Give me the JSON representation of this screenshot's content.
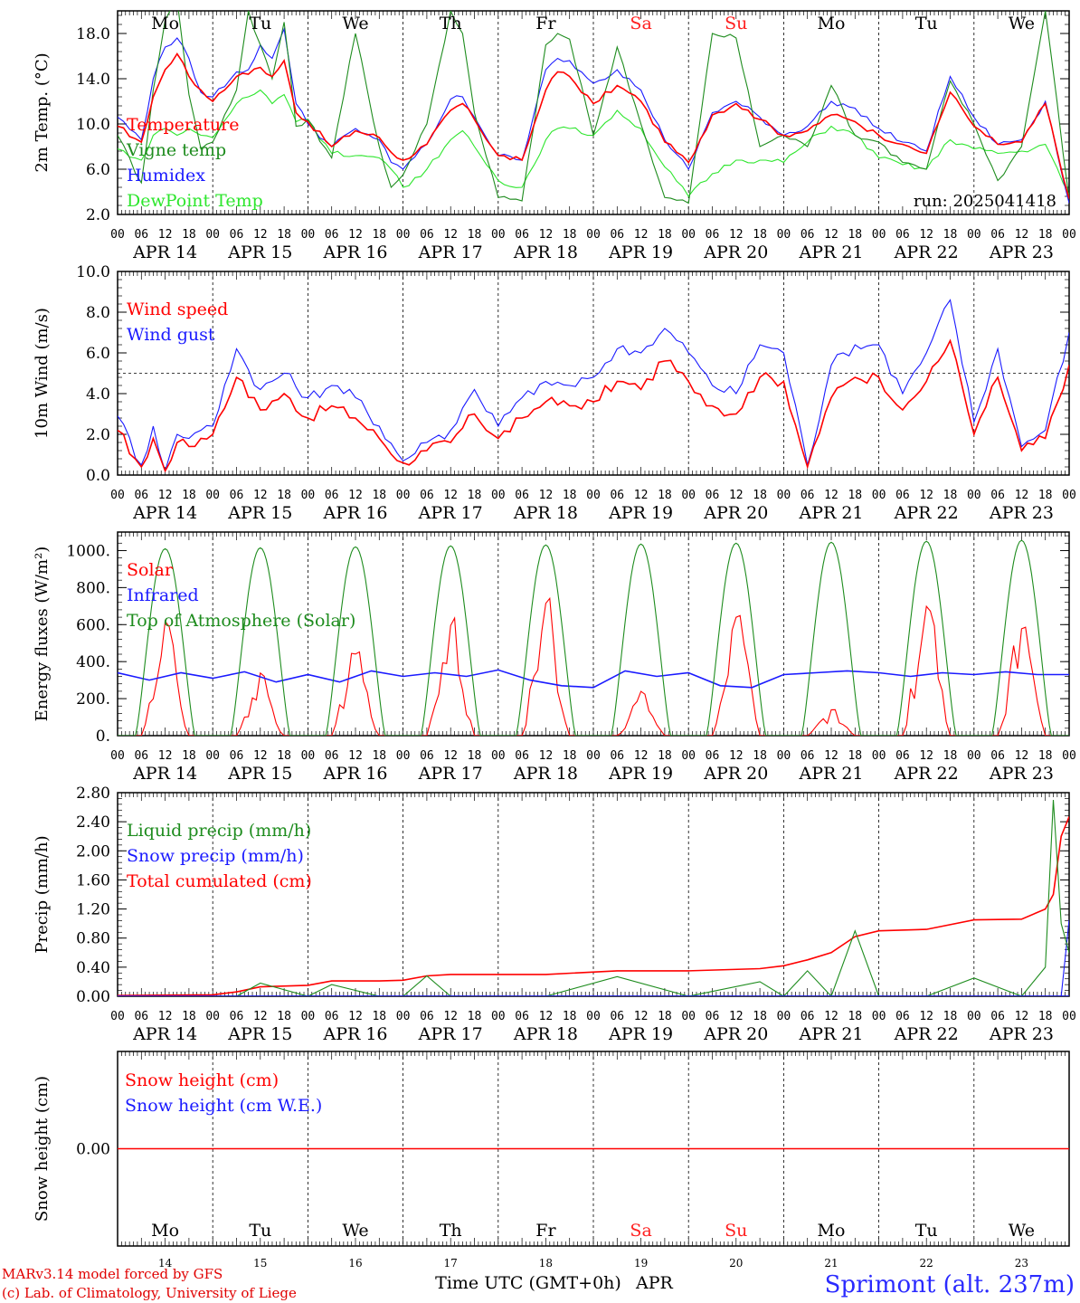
{
  "days": [
    "APR 14",
    "APR 15",
    "APR 16",
    "APR 17",
    "APR 18",
    "APR 19",
    "APR 20",
    "APR 21",
    "APR 22",
    "APR 23"
  ],
  "day_nums": [
    "14",
    "15",
    "16",
    "17",
    "18",
    "19",
    "20",
    "21",
    "22",
    "23"
  ],
  "weekdays": [
    "Mo",
    "Tu",
    "We",
    "Th",
    "Fr",
    "Sa",
    "Su",
    "Mo",
    "Tu",
    "We"
  ],
  "weekend_color": "#ff2020",
  "hour_ticks": [
    "00",
    "06",
    "12",
    "18"
  ],
  "end_tick": "00",
  "x_title": "Time UTC (GMT+0h)",
  "x_month": "APR",
  "credit_line1": "MARv3.14 model forced by GFS",
  "credit_line2": "(c) Lab. of Climatology, University of Liege",
  "station": "Sprimont (alt. 237m)",
  "colors": {
    "red": "#ff0000",
    "green": "#1e8c1e",
    "blue": "#1a1aff",
    "lightgreen": "#2de62d"
  },
  "chart_data": [
    {
      "type": "line",
      "ylabel": "2m Temp. (°C)",
      "ylim": [
        2,
        20
      ],
      "yticks": [
        "2.0",
        "6.0",
        "10.0",
        "14.0",
        "18.0"
      ],
      "run_label": "run: 2025041418",
      "x_hours": [
        0,
        6,
        9,
        12,
        15,
        18,
        21,
        24,
        30,
        33,
        36,
        39,
        42,
        45,
        48,
        54,
        60,
        66,
        69,
        72,
        78,
        84,
        87,
        90,
        96,
        102,
        108,
        111,
        114,
        120,
        126,
        132,
        138,
        144,
        150,
        156,
        162,
        168,
        174,
        180,
        186,
        192,
        198,
        204,
        210,
        216,
        222,
        228,
        234,
        240
      ],
      "series": [
        {
          "name": "Temperature",
          "color": "red",
          "values": [
            9.8,
            8.4,
            12.4,
            14.8,
            16.2,
            14.2,
            13.0,
            12.0,
            14.2,
            14.4,
            15.0,
            14.2,
            15.6,
            11.0,
            10.2,
            8.0,
            9.4,
            8.8,
            7.5,
            6.8,
            8.2,
            11.2,
            11.8,
            10.4,
            7.2,
            6.8,
            13.0,
            14.6,
            14.2,
            11.8,
            13.4,
            12.0,
            8.4,
            6.6,
            10.8,
            11.8,
            10.4,
            9.0,
            9.4,
            10.8,
            10.2,
            9.0,
            8.2,
            7.4,
            12.8,
            9.8,
            8.2,
            8.4,
            11.8,
            3.4
          ]
        },
        {
          "name": "Vigne temp",
          "color": "green",
          "values": [
            9.0,
            4.8,
            13.0,
            19.2,
            21.0,
            12.6,
            7.8,
            8.4,
            13.0,
            20.0,
            17.0,
            14.0,
            19.0,
            9.8,
            10.4,
            7.0,
            18.0,
            8.0,
            4.4,
            5.5,
            10.0,
            20.0,
            18.0,
            11.0,
            3.5,
            3.2,
            17.0,
            18.0,
            17.5,
            9.0,
            16.8,
            10.0,
            3.5,
            3.0,
            18.0,
            17.6,
            8.0,
            9.0,
            8.0,
            13.4,
            9.0,
            8.4,
            6.6,
            6.0,
            13.8,
            10.0,
            5.0,
            8.0,
            20.0,
            3.4
          ]
        },
        {
          "name": "Humidex",
          "color": "blue",
          "values": [
            10.6,
            8.6,
            14.0,
            16.8,
            17.6,
            15.8,
            12.8,
            12.4,
            14.6,
            14.8,
            17.0,
            15.8,
            18.4,
            11.8,
            10.0,
            8.0,
            9.6,
            8.6,
            6.6,
            6.0,
            8.2,
            12.2,
            12.4,
            10.6,
            7.2,
            6.8,
            14.8,
            15.8,
            15.6,
            13.6,
            14.8,
            13.0,
            8.6,
            6.0,
            11.0,
            12.0,
            10.6,
            9.0,
            9.8,
            12.0,
            11.4,
            9.6,
            8.4,
            7.6,
            14.2,
            10.6,
            8.2,
            8.6,
            12.0,
            3.0
          ]
        },
        {
          "name": "DewPoint Temp",
          "color": "lightgreen",
          "values": [
            7.8,
            6.8,
            9.0,
            9.6,
            9.0,
            9.6,
            9.0,
            8.8,
            11.8,
            12.4,
            13.0,
            11.8,
            12.6,
            10.2,
            10.4,
            7.4,
            7.2,
            7.0,
            6.0,
            4.4,
            6.0,
            8.6,
            9.4,
            8.0,
            5.0,
            4.4,
            8.6,
            9.6,
            9.6,
            9.0,
            11.2,
            9.6,
            6.2,
            3.6,
            5.6,
            6.8,
            6.8,
            6.6,
            8.4,
            9.8,
            9.0,
            7.0,
            6.4,
            6.0,
            8.6,
            7.8,
            7.4,
            7.6,
            8.2,
            3.8
          ]
        }
      ],
      "legend": [
        "Temperature",
        "Vigne temp",
        "Humidex",
        "DewPoint Temp"
      ]
    },
    {
      "type": "line",
      "ylabel": "10m Wind (m/s)",
      "ylim": [
        0,
        10
      ],
      "yticks": [
        "0.0",
        "2.0",
        "4.0",
        "6.0",
        "8.0",
        "10.0"
      ],
      "ref_line": 5,
      "x_hours": [
        0,
        6,
        9,
        12,
        15,
        18,
        21,
        24,
        30,
        36,
        42,
        48,
        54,
        60,
        66,
        72,
        78,
        84,
        90,
        96,
        102,
        108,
        114,
        120,
        126,
        132,
        138,
        144,
        150,
        156,
        162,
        168,
        174,
        180,
        186,
        192,
        198,
        204,
        210,
        216,
        222,
        228,
        234,
        240
      ],
      "series": [
        {
          "name": "Wind speed",
          "color": "red",
          "values": [
            2.2,
            0.4,
            1.8,
            0.2,
            1.6,
            1.4,
            1.8,
            2.0,
            4.8,
            3.2,
            4.0,
            2.8,
            3.4,
            2.8,
            1.8,
            0.6,
            1.2,
            1.6,
            3.0,
            1.8,
            2.8,
            3.6,
            3.4,
            3.6,
            4.6,
            4.2,
            5.6,
            4.6,
            3.4,
            3.0,
            4.8,
            4.6,
            0.4,
            3.8,
            4.8,
            4.8,
            3.2,
            4.6,
            6.6,
            2.0,
            4.8,
            1.2,
            1.8,
            5.4
          ]
        },
        {
          "name": "Wind gust",
          "color": "blue",
          "values": [
            2.9,
            0.5,
            2.4,
            0.2,
            2.0,
            1.8,
            2.2,
            2.4,
            6.2,
            4.2,
            5.0,
            3.8,
            4.4,
            3.8,
            2.4,
            0.7,
            1.6,
            2.2,
            4.2,
            2.4,
            3.8,
            4.6,
            4.4,
            4.8,
            6.2,
            6.0,
            7.2,
            6.0,
            4.4,
            4.0,
            6.4,
            6.0,
            0.5,
            5.4,
            6.4,
            6.4,
            4.0,
            6.0,
            8.6,
            2.6,
            6.2,
            1.4,
            2.2,
            7.0
          ]
        }
      ],
      "legend": [
        "Wind speed",
        "Wind gust"
      ]
    },
    {
      "type": "line",
      "ylabel": "Energy fluxes (W/m²)",
      "ylim": [
        0,
        1100
      ],
      "yticks": [
        "0.",
        "200.",
        "400.",
        "600.",
        "800.",
        "1000."
      ],
      "series": [
        {
          "name": "Solar",
          "color": "red",
          "kind": "solar",
          "peaks": [
            650,
            350,
            480,
            650,
            760,
            240,
            700,
            150,
            740,
            640
          ]
        },
        {
          "name": "Infrared",
          "color": "blue",
          "kind": "infrared",
          "values": [
            340,
            300,
            340,
            310,
            345,
            290,
            330,
            290,
            350,
            320,
            340,
            320,
            355,
            300,
            270,
            260,
            350,
            320,
            340,
            270,
            260,
            330,
            340,
            350,
            340,
            320,
            340,
            330,
            345,
            330,
            330
          ]
        },
        {
          "name": "Top of Atmosphere (Solar)",
          "color": "green",
          "kind": "toa",
          "peaks": [
            1010,
            1015,
            1020,
            1025,
            1030,
            1035,
            1040,
            1045,
            1050,
            1055
          ]
        }
      ],
      "legend": [
        "Solar",
        "Infrared",
        "Top of Atmosphere (Solar)"
      ]
    },
    {
      "type": "line",
      "ylabel": "Precip (mm/h)",
      "ylim": [
        0,
        2.8
      ],
      "yticks": [
        "0.00",
        "0.40",
        "0.80",
        "1.20",
        "1.60",
        "2.00",
        "2.40",
        "2.80"
      ],
      "x_hours": [
        0,
        24,
        30,
        36,
        48,
        54,
        66,
        72,
        78,
        84,
        108,
        126,
        144,
        162,
        168,
        174,
        180,
        186,
        192,
        204,
        216,
        228,
        234,
        236,
        238,
        240
      ],
      "series": [
        {
          "name": "Liquid precip (mm/h)",
          "color": "green",
          "values": [
            0,
            0,
            0,
            0.18,
            0,
            0.16,
            0,
            0,
            0.28,
            0,
            0,
            0.27,
            0,
            0.2,
            0,
            0.35,
            0,
            0.9,
            0,
            0,
            0.25,
            0,
            0.4,
            2.7,
            1.0,
            0.6
          ]
        },
        {
          "name": "Snow precip (mm/h)",
          "color": "blue",
          "values": [
            0,
            0,
            0,
            0,
            0,
            0,
            0,
            0,
            0,
            0,
            0,
            0,
            0,
            0,
            0,
            0,
            0,
            0,
            0,
            0,
            0,
            0,
            0,
            0,
            0,
            1.05
          ]
        },
        {
          "name": "Total cumulated (cm)",
          "color": "red",
          "values": [
            0.01,
            0.02,
            0.06,
            0.13,
            0.15,
            0.21,
            0.21,
            0.22,
            0.28,
            0.3,
            0.3,
            0.35,
            0.35,
            0.38,
            0.42,
            0.5,
            0.6,
            0.82,
            0.9,
            0.92,
            1.05,
            1.06,
            1.2,
            1.4,
            2.2,
            2.47
          ]
        }
      ],
      "legend": [
        "Liquid precip (mm/h)",
        "Snow precip (mm/h)",
        "Total cumulated (cm)"
      ]
    },
    {
      "type": "line",
      "ylabel": "Snow height (cm)",
      "ylim": [
        -1,
        1
      ],
      "yticks": [
        "0.00"
      ],
      "series": [
        {
          "name": "Snow height (cm)",
          "color": "red",
          "values": [
            0,
            0
          ]
        },
        {
          "name": "Snow height (cm W.E.)",
          "color": "blue",
          "values": [
            0,
            0
          ]
        }
      ],
      "legend": [
        "Snow height (cm)",
        "Snow height (cm W.E.)"
      ]
    }
  ]
}
